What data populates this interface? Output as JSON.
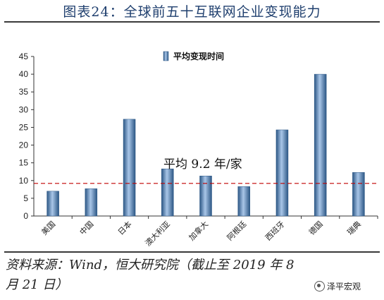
{
  "header": {
    "title": "图表24：全球前五十互联网企业变现能力"
  },
  "footer": {
    "source": "资料来源：Wind，恒大研究院（截止至 2019 年 8 月 21 日）",
    "watermark": "泽平宏观",
    "watermark_icon": "wechat-icon"
  },
  "chart_data": {
    "type": "bar",
    "title": "",
    "xlabel": "",
    "ylabel": "",
    "categories": [
      "美国",
      "中国",
      "日本",
      "澳大利亚",
      "加拿大",
      "阿根廷",
      "西班牙",
      "德国",
      "瑞典"
    ],
    "series": [
      {
        "name": "平均变现时间",
        "values": [
          7,
          7.7,
          27.3,
          13.3,
          11.3,
          8.3,
          24.3,
          40,
          12.3
        ]
      }
    ],
    "ylim": [
      0,
      45
    ],
    "yticks": [
      0,
      5,
      10,
      15,
      20,
      25,
      30,
      35,
      40,
      45
    ],
    "grid": false,
    "legend_position": "top",
    "reference_line": {
      "value": 9.2,
      "label": "平均 9.2 年/家",
      "color": "#c00000"
    },
    "colors": {
      "bar": "#4f81bd",
      "bar_dark": "#2c5785",
      "bar_light": "#a9c6e8",
      "axis": "#333333"
    }
  }
}
